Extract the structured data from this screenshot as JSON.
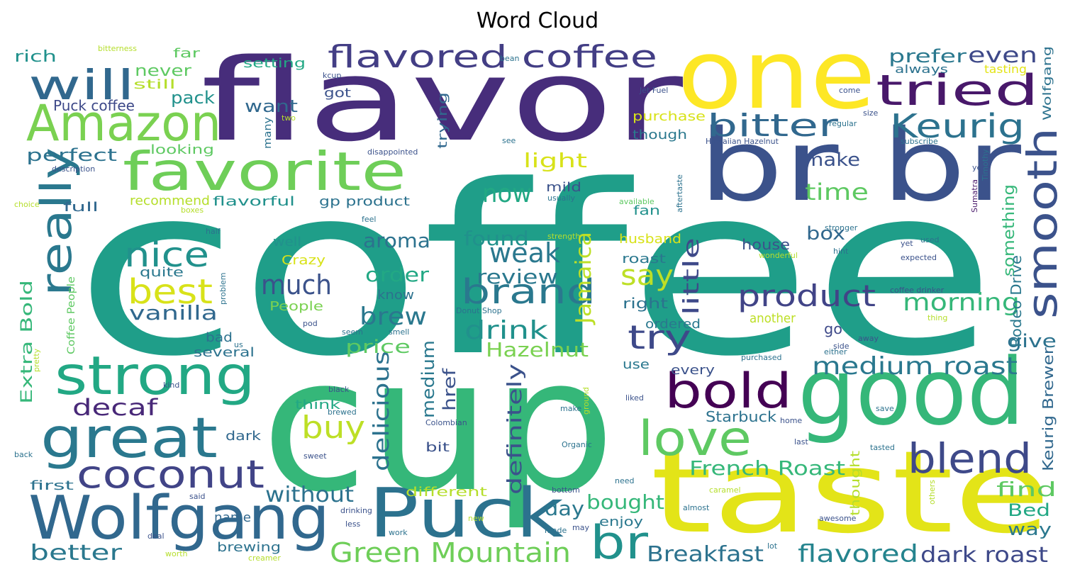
{
  "title": "Word Cloud",
  "palette": "viridis",
  "words": [
    {
      "text": "coffee",
      "color": "#1f9e89"
    },
    {
      "text": "cup",
      "color": "#35b779"
    },
    {
      "text": "flavor",
      "color": "#472d7b"
    },
    {
      "text": "taste",
      "color": "#e3e418"
    },
    {
      "text": "one",
      "color": "#fde725"
    },
    {
      "text": "br br",
      "color": "#3b528b"
    },
    {
      "text": "good",
      "color": "#35b779"
    },
    {
      "text": "Puck",
      "color": "#2c728e"
    },
    {
      "text": "Wolfgang",
      "color": "#31688e"
    },
    {
      "text": "Amazon",
      "color": "#7ad151"
    },
    {
      "text": "favorite",
      "color": "#6ece58"
    },
    {
      "text": "great",
      "color": "#2a788e"
    },
    {
      "text": "strong",
      "color": "#22a884"
    },
    {
      "text": "bold",
      "color": "#440154"
    },
    {
      "text": "love",
      "color": "#5ec962"
    },
    {
      "text": "coconut",
      "color": "#414487"
    },
    {
      "text": "really",
      "color": "#2a788e"
    },
    {
      "text": "br",
      "color": "#21918c"
    },
    {
      "text": "will",
      "color": "#31688e"
    },
    {
      "text": "smooth",
      "color": "#3b528b"
    },
    {
      "text": "blend",
      "color": "#3e4989"
    },
    {
      "text": "tried",
      "color": "#48186a"
    },
    {
      "text": "flavored coffee",
      "color": "#433e85"
    },
    {
      "text": "Keurig",
      "color": "#2c728e"
    },
    {
      "text": "bitter",
      "color": "#31688e"
    },
    {
      "text": "brand",
      "color": "#2a788e"
    },
    {
      "text": "nice",
      "color": "#21918c"
    },
    {
      "text": "best",
      "color": "#d8e219"
    },
    {
      "text": "product",
      "color": "#414487"
    },
    {
      "text": "Green Mountain",
      "color": "#6ece58"
    },
    {
      "text": "medium roast",
      "color": "#2a788e"
    },
    {
      "text": "try",
      "color": "#3e4989"
    },
    {
      "text": "buy",
      "color": "#bddf26"
    },
    {
      "text": "morning",
      "color": "#35b779"
    },
    {
      "text": "much",
      "color": "#3b528b"
    },
    {
      "text": "weak",
      "color": "#2a788e"
    },
    {
      "text": "drink",
      "color": "#21918c"
    },
    {
      "text": "say",
      "color": "#bddf26"
    },
    {
      "text": "now",
      "color": "#22a884"
    },
    {
      "text": "flavored",
      "color": "#25848e"
    },
    {
      "text": "dark roast",
      "color": "#3e4989"
    },
    {
      "text": "Breakfast",
      "color": "#2c728e"
    },
    {
      "text": "French Roast",
      "color": "#35b779"
    },
    {
      "text": "decaf",
      "color": "#482878"
    },
    {
      "text": "brew",
      "color": "#2a788e"
    },
    {
      "text": "without",
      "color": "#2c728e"
    },
    {
      "text": "better",
      "color": "#2a788e"
    },
    {
      "text": "time",
      "color": "#5ec962"
    },
    {
      "text": "vanilla",
      "color": "#31688e"
    },
    {
      "text": "Hazelnut",
      "color": "#7ad151"
    },
    {
      "text": "delicious",
      "color": "#2c728e"
    },
    {
      "text": "Jamaica",
      "color": "#bddf26"
    },
    {
      "text": "review",
      "color": "#2a788e"
    },
    {
      "text": "order",
      "color": "#22a884"
    },
    {
      "text": "found",
      "color": "#21918c"
    },
    {
      "text": "aroma",
      "color": "#2c728e"
    },
    {
      "text": "little",
      "color": "#3e4989"
    },
    {
      "text": "price",
      "color": "#5ec962"
    },
    {
      "text": "definitely",
      "color": "#3b528b"
    },
    {
      "text": "bought",
      "color": "#35b779"
    },
    {
      "text": "day",
      "color": "#2a788e"
    },
    {
      "text": "find",
      "color": "#5ec962"
    },
    {
      "text": "prefer",
      "color": "#2a788e"
    },
    {
      "text": "even",
      "color": "#3e4989"
    },
    {
      "text": "light",
      "color": "#d8e219"
    },
    {
      "text": "make",
      "color": "#3b528b"
    },
    {
      "text": "box",
      "color": "#31688e"
    },
    {
      "text": "medium",
      "color": "#2a788e"
    },
    {
      "text": "href",
      "color": "#3b528b"
    },
    {
      "text": "want",
      "color": "#31688e"
    },
    {
      "text": "pack",
      "color": "#21918c"
    },
    {
      "text": "perfect",
      "color": "#2c728e"
    },
    {
      "text": "never",
      "color": "#5ec962"
    },
    {
      "text": "rich",
      "color": "#21918c"
    },
    {
      "text": "Puck coffee",
      "color": "#3e4989"
    },
    {
      "text": "Extra Bold",
      "color": "#35b779"
    },
    {
      "text": "give",
      "color": "#2c728e"
    },
    {
      "text": "way",
      "color": "#2a788e"
    },
    {
      "text": "Bed",
      "color": "#22a884"
    },
    {
      "text": "something",
      "color": "#35b779"
    },
    {
      "text": "Rodeo Drive",
      "color": "#2a788e"
    },
    {
      "text": "Keurig Brewer",
      "color": "#31688e"
    },
    {
      "text": "Wolfgang",
      "color": "#2c728e"
    },
    {
      "text": "house",
      "color": "#3b528b"
    },
    {
      "text": "another",
      "color": "#bddf26"
    },
    {
      "text": "right",
      "color": "#2c728e"
    },
    {
      "text": "ordered",
      "color": "#2a788e"
    },
    {
      "text": "husband",
      "color": "#d8e219"
    },
    {
      "text": "roast",
      "color": "#2a788e"
    },
    {
      "text": "fan",
      "color": "#21918c"
    },
    {
      "text": "enjoy",
      "color": "#2a788e"
    },
    {
      "text": "every",
      "color": "#3b528b"
    },
    {
      "text": "Starbuck",
      "color": "#2c728e"
    },
    {
      "text": "use",
      "color": "#2a788e"
    },
    {
      "text": "go",
      "color": "#3e4989"
    },
    {
      "text": "thought",
      "color": "#b5de2b"
    },
    {
      "text": "brewing",
      "color": "#2c728e"
    },
    {
      "text": "name",
      "color": "#31688e"
    },
    {
      "text": "different",
      "color": "#b5de2b"
    },
    {
      "text": "bit",
      "color": "#3b528b"
    },
    {
      "text": "think",
      "color": "#22a884"
    },
    {
      "text": "dark",
      "color": "#31688e"
    },
    {
      "text": "well",
      "color": "#21918c"
    },
    {
      "text": "Crazy",
      "color": "#d8e219"
    },
    {
      "text": "People",
      "color": "#7ad151"
    },
    {
      "text": "quite",
      "color": "#2a788e"
    },
    {
      "text": "know",
      "color": "#2c728e"
    },
    {
      "text": "several",
      "color": "#2c728e"
    },
    {
      "text": "bad",
      "color": "#2c728e"
    },
    {
      "text": "full",
      "color": "#31688e"
    },
    {
      "text": "mild",
      "color": "#3b528b"
    },
    {
      "text": "first",
      "color": "#2c728e"
    },
    {
      "text": "gp product",
      "color": "#2c728e"
    },
    {
      "text": "flavorful",
      "color": "#21918c"
    },
    {
      "text": "recommend",
      "color": "#b5de2b"
    },
    {
      "text": "looking",
      "color": "#5ec962"
    },
    {
      "text": "setting",
      "color": "#22a884"
    },
    {
      "text": "far",
      "color": "#5ec962"
    },
    {
      "text": "still",
      "color": "#b5de2b"
    },
    {
      "text": "got",
      "color": "#3b528b"
    },
    {
      "text": "trying",
      "color": "#31688e"
    },
    {
      "text": "purchase",
      "color": "#d8e219"
    },
    {
      "text": "though",
      "color": "#2a788e"
    },
    {
      "text": "always",
      "color": "#2c728e"
    },
    {
      "text": "tasting",
      "color": "#e3e418"
    },
    {
      "text": "Coffee People",
      "color": "#5ec962"
    },
    {
      "text": "many",
      "color": "#2c728e"
    }
  ],
  "small_words": [
    "bitterness",
    "bean",
    "kcup",
    "Jet Fuel",
    "come",
    "size",
    "Hawaiian Hazelnut",
    "regular",
    "subscribe",
    "year",
    "Timothy",
    "Sumatra",
    "stronger",
    "disappointed",
    "description",
    "two",
    "see",
    "choice",
    "boxes",
    "half",
    "feel",
    "usually",
    "available",
    "aftertaste",
    "strength",
    "hint",
    "yet",
    "used",
    "expected",
    "wonderful",
    "problem",
    "pod",
    "Donut Shop",
    "coffee drinker",
    "thing",
    "smell",
    "seem",
    "us",
    "pretty",
    "kind",
    "black",
    "brewed",
    "ground",
    "make",
    "liked",
    "save",
    "side",
    "purchased",
    "either",
    "away",
    "Colombian",
    "Organic",
    "home",
    "tasted",
    "last",
    "sweet",
    "back",
    "need",
    "bottom",
    "said",
    "others",
    "caramel",
    "almost",
    "awesome",
    "drinking",
    "new",
    "made",
    "may",
    "work",
    "less",
    "lot",
    "deal",
    "worth",
    "creamer"
  ]
}
